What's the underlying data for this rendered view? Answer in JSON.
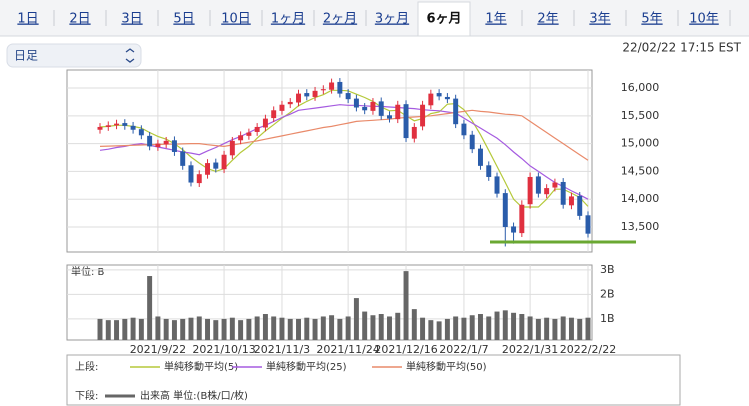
{
  "tabs": {
    "labels": [
      "1日",
      "2日",
      "3日",
      "5日",
      "10日",
      "1ヶ月",
      "2ヶ月",
      "3ヶ月",
      "6ヶ月",
      "1年",
      "2年",
      "3年",
      "5年",
      "10年"
    ],
    "selected": 8
  },
  "selector": {
    "label": "日足"
  },
  "timestamp": "22/02/22 17:15 EST",
  "chart_data": {
    "type": "candlestick",
    "up_color": "#e0303f",
    "down_color": "#2a5caa",
    "open": [
      15250,
      15300,
      15330,
      15370,
      15320,
      15260,
      15140,
      14940,
      14990,
      15060,
      14860,
      14610,
      14290,
      14440,
      14660,
      14540,
      14790,
      15060,
      15140,
      15210,
      15290,
      15460,
      15590,
      15710,
      15740,
      15910,
      15840,
      15960,
      15970,
      16110,
      15910,
      15810,
      15660,
      15590,
      15760,
      15510,
      15440,
      15710,
      15090,
      15310,
      15690,
      15910,
      15840,
      15810,
      15360,
      15160,
      14910,
      14610,
      14410,
      14110,
      13510,
      13390,
      13910,
      14410,
      14090,
      14210,
      14310,
      13890,
      14060,
      13710
    ],
    "high": [
      15370,
      15400,
      15430,
      15440,
      15390,
      15330,
      15210,
      15070,
      15120,
      15130,
      14930,
      14680,
      14520,
      14720,
      14730,
      14870,
      15120,
      15220,
      15270,
      15370,
      15520,
      15670,
      15770,
      15820,
      15970,
      15980,
      16020,
      16050,
      16170,
      16180,
      15980,
      15880,
      15730,
      15820,
      15830,
      15580,
      15770,
      15780,
      15370,
      15770,
      15970,
      15980,
      15910,
      15880,
      15430,
      15230,
      14980,
      14680,
      14480,
      14180,
      13580,
      13980,
      14480,
      14480,
      14270,
      14370,
      14380,
      14120,
      14130,
      13780
    ],
    "low": [
      15180,
      15230,
      15260,
      15250,
      15180,
      15080,
      14880,
      14870,
      14920,
      14780,
      14530,
      14230,
      14220,
      14370,
      14480,
      14470,
      14720,
      14990,
      15070,
      15140,
      15220,
      15390,
      15520,
      15640,
      15670,
      15780,
      15770,
      15890,
      15900,
      15830,
      15730,
      15580,
      15530,
      15520,
      15430,
      15380,
      15370,
      15030,
      15020,
      15240,
      15620,
      15780,
      15730,
      15280,
      15080,
      14830,
      14530,
      14330,
      14030,
      13150,
      13200,
      13320,
      13830,
      14030,
      14020,
      14140,
      13830,
      13820,
      13630,
      13310
    ],
    "close": [
      15300,
      15330,
      15360,
      15320,
      15250,
      15150,
      14950,
      15000,
      15050,
      14850,
      14600,
      14300,
      14450,
      14650,
      14550,
      14800,
      15050,
      15150,
      15200,
      15300,
      15450,
      15600,
      15700,
      15750,
      15900,
      15850,
      15950,
      15980,
      16100,
      15900,
      15800,
      15650,
      15600,
      15750,
      15500,
      15450,
      15700,
      15100,
      15300,
      15700,
      15900,
      15850,
      15800,
      15350,
      15150,
      14900,
      14600,
      14400,
      14100,
      13500,
      13400,
      13900,
      14400,
      14100,
      14200,
      14300,
      13900,
      14050,
      13700,
      13380
    ],
    "series": [
      {
        "name": "単純移動平均(5)",
        "color": "#b5c93a",
        "values": [
          15300,
          15310,
          15330,
          15330,
          15310,
          15280,
          15200,
          15130,
          15080,
          15000,
          14890,
          14760,
          14650,
          14550,
          14500,
          14550,
          14700,
          14840,
          14950,
          15100,
          15230,
          15340,
          15460,
          15560,
          15680,
          15760,
          15830,
          15880,
          15960,
          15960,
          15950,
          15890,
          15830,
          15760,
          15660,
          15590,
          15600,
          15500,
          15410,
          15450,
          15540,
          15570,
          15710,
          15720,
          15610,
          15410,
          15160,
          14880,
          14590,
          14300,
          14000,
          13860,
          13860,
          13860,
          14000,
          14180,
          14180,
          14110,
          14030,
          13870
        ]
      },
      {
        "name": "単純移動平均(25)",
        "color": "#a55be0",
        "values": [
          14880,
          14900,
          14930,
          14950,
          14980,
          15000,
          14970,
          14940,
          14910,
          14880,
          14850,
          14830,
          14800,
          14870,
          14930,
          15000,
          15070,
          15130,
          15200,
          15270,
          15330,
          15400,
          15470,
          15530,
          15600,
          15620,
          15640,
          15660,
          15680,
          15700,
          15690,
          15690,
          15680,
          15670,
          15670,
          15660,
          15650,
          15640,
          15630,
          15610,
          15600,
          15590,
          15570,
          15550,
          15460,
          15370,
          15280,
          15190,
          15100,
          14980,
          14850,
          14730,
          14600,
          14500,
          14400,
          14300,
          14230,
          14150,
          14080,
          14000
        ]
      },
      {
        "name": "単純移動平均(50)",
        "color": "#e98a6a",
        "values": [
          14950,
          14955,
          14960,
          14965,
          14970,
          14975,
          14980,
          14985,
          14990,
          14990,
          14995,
          15000,
          15000,
          14980,
          14965,
          14950,
          14975,
          15000,
          15025,
          15050,
          15080,
          15110,
          15140,
          15170,
          15200,
          15230,
          15260,
          15290,
          15310,
          15340,
          15370,
          15400,
          15410,
          15420,
          15430,
          15440,
          15460,
          15470,
          15480,
          15490,
          15500,
          15520,
          15540,
          15560,
          15580,
          15600,
          15580,
          15570,
          15550,
          15530,
          15520,
          15500,
          15400,
          15300,
          15200,
          15100,
          15000,
          14900,
          14800,
          14700
        ]
      }
    ],
    "ylim": [
      13050,
      16325
    ],
    "yticks": [
      {
        "value": 13500,
        "label": "13,500"
      },
      {
        "value": 14000,
        "label": "14,000"
      },
      {
        "value": 14500,
        "label": "14,500"
      },
      {
        "value": 15000,
        "label": "15,000"
      },
      {
        "value": 15500,
        "label": "15,500"
      },
      {
        "value": 16000,
        "label": "16,000"
      }
    ],
    "xticks": [
      {
        "value": 7,
        "label": "2021/9/22"
      },
      {
        "value": 15,
        "label": "2021/10/13"
      },
      {
        "value": 22,
        "label": "2021/11/3"
      },
      {
        "value": 30,
        "label": "2021/11/24"
      },
      {
        "value": 37,
        "label": "2021/12/16"
      },
      {
        "value": 44,
        "label": "2022/1/7"
      },
      {
        "value": 52,
        "label": "2022/1/31"
      },
      {
        "value": 59,
        "label": "2022/2/22"
      }
    ],
    "hline": {
      "value": 13230,
      "color": "#6aa832"
    },
    "grid": true,
    "volume": {
      "type": "bar",
      "label": "単位: B",
      "name": "出来高 単位:(B株/口/枚)",
      "color": "#666666",
      "values": [
        1.0,
        0.95,
        0.95,
        1.0,
        1.05,
        1.0,
        2.75,
        1.1,
        1.0,
        0.95,
        1.0,
        1.05,
        1.1,
        1.0,
        0.95,
        1.0,
        1.05,
        0.95,
        1.0,
        1.1,
        1.2,
        1.1,
        1.05,
        1.0,
        1.0,
        1.05,
        1.0,
        1.1,
        1.15,
        1.0,
        1.1,
        1.85,
        1.3,
        1.15,
        1.2,
        1.1,
        1.25,
        2.95,
        1.4,
        1.05,
        0.95,
        0.9,
        1.0,
        1.1,
        1.05,
        1.15,
        1.2,
        1.1,
        1.3,
        1.35,
        1.25,
        1.2,
        1.1,
        1.0,
        1.05,
        1.0,
        1.1,
        1.05,
        1.0,
        1.05
      ],
      "ylim": [
        0.14,
        3.2
      ],
      "yticks": [
        {
          "value": 1,
          "label": "1B"
        },
        {
          "value": 2,
          "label": "2B"
        },
        {
          "value": 3,
          "label": "3B"
        }
      ]
    },
    "legend_top_label": "上段:",
    "legend_bottom_label": "下段:"
  }
}
